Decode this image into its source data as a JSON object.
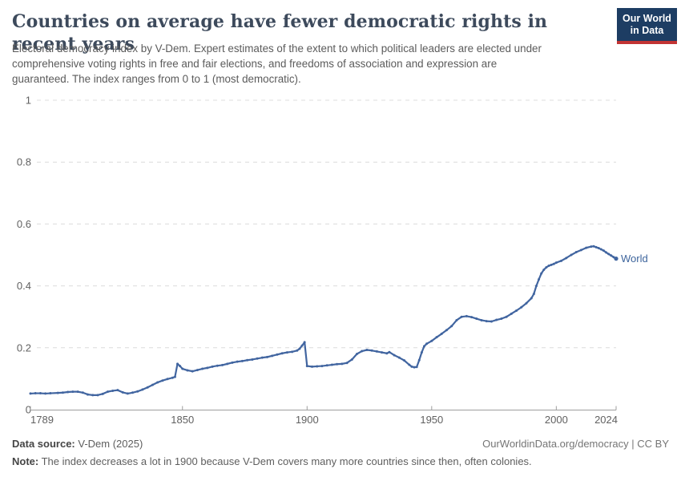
{
  "header": {
    "title": "Countries on average have fewer democratic rights in recent years",
    "subtitle_lines": [
      "Electoral democracy index by V-Dem. Expert estimates of the extent to which political leaders are elected under",
      "comprehensive voting rights in free and fair elections, and freedoms of association and expression are",
      "guaranteed. The index ranges from 0 to 1 (most democratic)."
    ],
    "logo": {
      "line1": "Our World",
      "line2": "in Data"
    }
  },
  "footer": {
    "datasource_label": "Data source:",
    "datasource_value": "V-Dem (2025)",
    "attribution": "OurWorldinData.org/democracy | CC BY",
    "note_label": "Note:",
    "note_text": "The index decreases a lot in 1900 because V-Dem covers many more countries since then, often colonies."
  },
  "colors": {
    "line": "#4165a0",
    "series_label": "#3d649c",
    "logo_bg": "#1d3d63",
    "logo_stripe": "#c23434",
    "title": "#3d4a5c",
    "grid": "#dcdcdc",
    "axis": "#9e9e9e",
    "tick_label": "#616161"
  },
  "chart_data": {
    "type": "line",
    "title": "Countries on average have fewer democratic rights in recent years",
    "xlabel": "",
    "ylabel": "",
    "x_range": [
      1789,
      2024
    ],
    "y_range": [
      0,
      1
    ],
    "grid": true,
    "legend_position": "end-of-line-label",
    "yticks": [
      {
        "v": 0,
        "label": "0"
      },
      {
        "v": 0.2,
        "label": "0.2"
      },
      {
        "v": 0.4,
        "label": "0.4"
      },
      {
        "v": 0.6,
        "label": "0.6"
      },
      {
        "v": 0.8,
        "label": "0.8"
      },
      {
        "v": 1,
        "label": "1"
      }
    ],
    "xticks": [
      {
        "year": 1789,
        "label": "1789"
      },
      {
        "year": 1850,
        "label": "1850"
      },
      {
        "year": 1900,
        "label": "1900"
      },
      {
        "year": 1950,
        "label": "1950"
      },
      {
        "year": 2000,
        "label": "2000"
      },
      {
        "year": 2024,
        "label": "2024"
      }
    ],
    "series": [
      {
        "name": "World",
        "color": "#4165a0",
        "points": [
          [
            1789,
            0.052
          ],
          [
            1791,
            0.053
          ],
          [
            1793,
            0.053
          ],
          [
            1795,
            0.052
          ],
          [
            1797,
            0.053
          ],
          [
            1800,
            0.054
          ],
          [
            1802,
            0.055
          ],
          [
            1804,
            0.057
          ],
          [
            1806,
            0.058
          ],
          [
            1808,
            0.058
          ],
          [
            1810,
            0.055
          ],
          [
            1812,
            0.049
          ],
          [
            1814,
            0.047
          ],
          [
            1816,
            0.047
          ],
          [
            1818,
            0.051
          ],
          [
            1820,
            0.058
          ],
          [
            1822,
            0.061
          ],
          [
            1824,
            0.063
          ],
          [
            1826,
            0.056
          ],
          [
            1828,
            0.052
          ],
          [
            1830,
            0.055
          ],
          [
            1832,
            0.059
          ],
          [
            1834,
            0.065
          ],
          [
            1836,
            0.072
          ],
          [
            1838,
            0.08
          ],
          [
            1840,
            0.088
          ],
          [
            1842,
            0.094
          ],
          [
            1844,
            0.099
          ],
          [
            1846,
            0.103
          ],
          [
            1847,
            0.106
          ],
          [
            1848,
            0.148
          ],
          [
            1849,
            0.141
          ],
          [
            1850,
            0.132
          ],
          [
            1852,
            0.127
          ],
          [
            1854,
            0.124
          ],
          [
            1856,
            0.128
          ],
          [
            1858,
            0.132
          ],
          [
            1860,
            0.135
          ],
          [
            1862,
            0.139
          ],
          [
            1864,
            0.142
          ],
          [
            1866,
            0.144
          ],
          [
            1868,
            0.148
          ],
          [
            1870,
            0.152
          ],
          [
            1872,
            0.155
          ],
          [
            1874,
            0.157
          ],
          [
            1876,
            0.16
          ],
          [
            1878,
            0.162
          ],
          [
            1880,
            0.165
          ],
          [
            1882,
            0.168
          ],
          [
            1884,
            0.17
          ],
          [
            1886,
            0.174
          ],
          [
            1888,
            0.178
          ],
          [
            1890,
            0.182
          ],
          [
            1892,
            0.185
          ],
          [
            1894,
            0.187
          ],
          [
            1896,
            0.191
          ],
          [
            1897,
            0.197
          ],
          [
            1898,
            0.207
          ],
          [
            1899,
            0.218
          ],
          [
            1900,
            0.141
          ],
          [
            1902,
            0.139
          ],
          [
            1904,
            0.14
          ],
          [
            1906,
            0.141
          ],
          [
            1908,
            0.143
          ],
          [
            1910,
            0.145
          ],
          [
            1912,
            0.147
          ],
          [
            1914,
            0.148
          ],
          [
            1916,
            0.151
          ],
          [
            1918,
            0.162
          ],
          [
            1920,
            0.18
          ],
          [
            1922,
            0.189
          ],
          [
            1924,
            0.193
          ],
          [
            1926,
            0.191
          ],
          [
            1928,
            0.188
          ],
          [
            1930,
            0.185
          ],
          [
            1932,
            0.182
          ],
          [
            1933,
            0.186
          ],
          [
            1935,
            0.176
          ],
          [
            1937,
            0.168
          ],
          [
            1939,
            0.159
          ],
          [
            1941,
            0.145
          ],
          [
            1942,
            0.139
          ],
          [
            1943,
            0.137
          ],
          [
            1944,
            0.138
          ],
          [
            1945,
            0.16
          ],
          [
            1946,
            0.185
          ],
          [
            1947,
            0.205
          ],
          [
            1948,
            0.213
          ],
          [
            1950,
            0.222
          ],
          [
            1952,
            0.234
          ],
          [
            1954,
            0.245
          ],
          [
            1956,
            0.257
          ],
          [
            1958,
            0.27
          ],
          [
            1960,
            0.289
          ],
          [
            1962,
            0.3
          ],
          [
            1964,
            0.302
          ],
          [
            1966,
            0.299
          ],
          [
            1968,
            0.294
          ],
          [
            1970,
            0.289
          ],
          [
            1972,
            0.286
          ],
          [
            1974,
            0.285
          ],
          [
            1976,
            0.29
          ],
          [
            1978,
            0.294
          ],
          [
            1980,
            0.3
          ],
          [
            1982,
            0.31
          ],
          [
            1984,
            0.32
          ],
          [
            1986,
            0.331
          ],
          [
            1988,
            0.344
          ],
          [
            1990,
            0.36
          ],
          [
            1991,
            0.374
          ],
          [
            1992,
            0.4
          ],
          [
            1993,
            0.421
          ],
          [
            1994,
            0.44
          ],
          [
            1995,
            0.452
          ],
          [
            1996,
            0.46
          ],
          [
            1997,
            0.465
          ],
          [
            1998,
            0.468
          ],
          [
            1999,
            0.471
          ],
          [
            2000,
            0.475
          ],
          [
            2002,
            0.481
          ],
          [
            2004,
            0.49
          ],
          [
            2006,
            0.5
          ],
          [
            2008,
            0.509
          ],
          [
            2010,
            0.516
          ],
          [
            2012,
            0.523
          ],
          [
            2014,
            0.527
          ],
          [
            2015,
            0.528
          ],
          [
            2016,
            0.525
          ],
          [
            2017,
            0.522
          ],
          [
            2018,
            0.518
          ],
          [
            2019,
            0.514
          ],
          [
            2020,
            0.508
          ],
          [
            2021,
            0.503
          ],
          [
            2022,
            0.498
          ],
          [
            2023,
            0.493
          ],
          [
            2024,
            0.488
          ]
        ]
      }
    ]
  }
}
